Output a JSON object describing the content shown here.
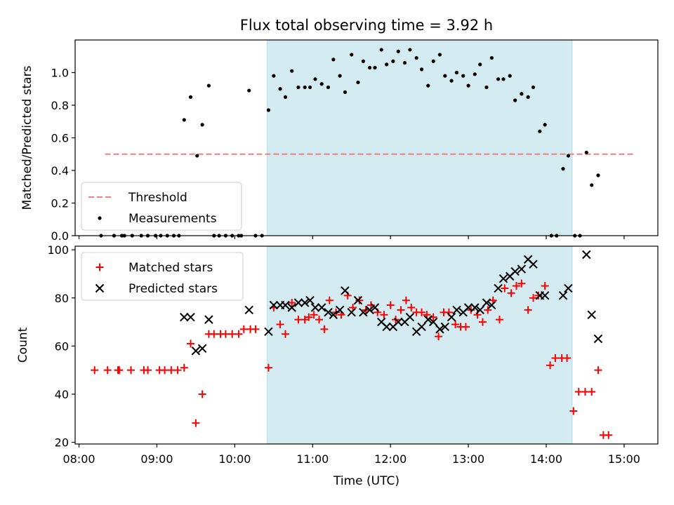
{
  "title": "Flux total observing time = 3.92 h",
  "chart_data": [
    {
      "type": "scatter",
      "ylabel": "Matched/Predicted stars",
      "ylim": [
        0,
        1.2
      ],
      "yticks": [
        0.0,
        0.2,
        0.4,
        0.6,
        0.8,
        1.0
      ],
      "ytick_labels": [
        "0.0",
        "0.2",
        "0.4",
        "0.6",
        "0.8",
        "1.0"
      ],
      "shaded_span": [
        "10:25",
        "14:20"
      ],
      "shade_color": "#d4ebf1",
      "threshold": {
        "name": "Threshold",
        "value": 0.5,
        "x_range": [
          "08:20",
          "15:08"
        ],
        "color": "#f08080"
      },
      "legend_position": "lower left",
      "series": [
        {
          "name": "Measurements",
          "color": "#000000",
          "marker": "dot",
          "points": [
            [
              "08:17",
              0
            ],
            [
              "08:27",
              0
            ],
            [
              "08:33",
              0
            ],
            [
              "08:35",
              0
            ],
            [
              "08:41",
              0
            ],
            [
              "08:48",
              0
            ],
            [
              "08:53",
              0
            ],
            [
              "08:59",
              0
            ],
            [
              "09:03",
              0
            ],
            [
              "09:08",
              0
            ],
            [
              "09:13",
              0
            ],
            [
              "09:17",
              0
            ],
            [
              "09:21",
              0.71
            ],
            [
              "09:26",
              0.85
            ],
            [
              "09:31",
              0.49
            ],
            [
              "09:35",
              0.68
            ],
            [
              "09:40",
              0.92
            ],
            [
              "09:44",
              0
            ],
            [
              "09:48",
              0
            ],
            [
              "09:53",
              0
            ],
            [
              "09:58",
              0
            ],
            [
              "10:03",
              0
            ],
            [
              "10:05",
              0
            ],
            [
              "10:11",
              0.89
            ],
            [
              "10:16",
              0
            ],
            [
              "10:21",
              0
            ],
            [
              "10:26",
              0.77
            ],
            [
              "10:30",
              0.98
            ],
            [
              "10:35",
              0.9
            ],
            [
              "10:39",
              0.85
            ],
            [
              "10:44",
              1.01
            ],
            [
              "10:49",
              0.91
            ],
            [
              "10:54",
              0.91
            ],
            [
              "10:58",
              0.91
            ],
            [
              "11:02",
              0.96
            ],
            [
              "11:07",
              0.93
            ],
            [
              "11:12",
              0.91
            ],
            [
              "11:16",
              1.08
            ],
            [
              "11:21",
              0.98
            ],
            [
              "11:25",
              0.88
            ],
            [
              "11:30",
              1.11
            ],
            [
              "11:35",
              0.94
            ],
            [
              "11:39",
              1.07
            ],
            [
              "11:44",
              1.03
            ],
            [
              "11:48",
              1.03
            ],
            [
              "11:53",
              1.14
            ],
            [
              "11:57",
              1.05
            ],
            [
              "12:02",
              1.07
            ],
            [
              "12:06",
              1.13
            ],
            [
              "12:11",
              1.06
            ],
            [
              "12:15",
              1.14
            ],
            [
              "12:20",
              1.09
            ],
            [
              "12:24",
              1.02
            ],
            [
              "12:29",
              0.92
            ],
            [
              "12:33",
              1.07
            ],
            [
              "12:38",
              1.11
            ],
            [
              "12:42",
              0.98
            ],
            [
              "12:47",
              0.95
            ],
            [
              "12:51",
              1.0
            ],
            [
              "12:56",
              0.98
            ],
            [
              "13:00",
              0.92
            ],
            [
              "13:05",
              0.99
            ],
            [
              "13:09",
              1.05
            ],
            [
              "13:14",
              0.91
            ],
            [
              "13:18",
              1.09
            ],
            [
              "13:23",
              0.96
            ],
            [
              "13:27",
              0.96
            ],
            [
              "13:32",
              0.98
            ],
            [
              "13:36",
              0.83
            ],
            [
              "13:41",
              0.87
            ],
            [
              "13:46",
              0.85
            ],
            [
              "13:50",
              0.91
            ],
            [
              "13:55",
              0.64
            ],
            [
              "13:59",
              0.68
            ],
            [
              "14:04",
              0
            ],
            [
              "14:08",
              0
            ],
            [
              "14:13",
              0.41
            ],
            [
              "14:17",
              0.49
            ],
            [
              "14:22",
              0
            ],
            [
              "14:26",
              0
            ],
            [
              "14:31",
              0.51
            ],
            [
              "14:35",
              0.31
            ],
            [
              "14:40",
              0.37
            ]
          ]
        }
      ]
    },
    {
      "type": "scatter",
      "xlabel": "Time (UTC)",
      "ylabel": "Count",
      "ylim": [
        19.3,
        101.5
      ],
      "yticks": [
        20,
        40,
        60,
        80,
        100
      ],
      "ytick_labels": [
        "20",
        "40",
        "60",
        "80",
        "100"
      ],
      "xlim": [
        "07:57",
        "15:26"
      ],
      "xticks": [
        "08:00",
        "09:00",
        "10:00",
        "11:00",
        "12:00",
        "13:00",
        "14:00",
        "15:00"
      ],
      "xtick_labels": [
        "08:00",
        "09:00",
        "10:00",
        "11:00",
        "12:00",
        "13:00",
        "14:00",
        "15:00"
      ],
      "legend_position": "upper left",
      "series": [
        {
          "name": "Matched stars",
          "color": "#ff0000",
          "marker": "plus",
          "points": [
            [
              "08:12",
              50
            ],
            [
              "08:22",
              50
            ],
            [
              "08:30",
              50
            ],
            [
              "08:31",
              50
            ],
            [
              "08:40",
              50
            ],
            [
              "08:50",
              50
            ],
            [
              "08:53",
              50
            ],
            [
              "09:02",
              50
            ],
            [
              "09:06",
              50
            ],
            [
              "09:11",
              50
            ],
            [
              "09:16",
              50
            ],
            [
              "09:21",
              51
            ],
            [
              "09:26",
              61
            ],
            [
              "09:30",
              28
            ],
            [
              "09:35",
              40
            ],
            [
              "09:40",
              65
            ],
            [
              "09:44",
              65
            ],
            [
              "09:49",
              65
            ],
            [
              "09:53",
              65
            ],
            [
              "09:58",
              65
            ],
            [
              "10:03",
              65
            ],
            [
              "10:07",
              67
            ],
            [
              "10:12",
              67
            ],
            [
              "10:16",
              67
            ],
            [
              "10:26",
              51
            ],
            [
              "10:30",
              76
            ],
            [
              "10:35",
              69
            ],
            [
              "10:39",
              65
            ],
            [
              "10:44",
              78
            ],
            [
              "10:49",
              71
            ],
            [
              "10:54",
              71
            ],
            [
              "10:57",
              72
            ],
            [
              "11:01",
              73
            ],
            [
              "11:05",
              71
            ],
            [
              "11:09",
              67
            ],
            [
              "11:13",
              79
            ],
            [
              "11:18",
              74
            ],
            [
              "11:22",
              73
            ],
            [
              "11:27",
              81
            ],
            [
              "11:31",
              76
            ],
            [
              "11:36",
              79
            ],
            [
              "11:41",
              75
            ],
            [
              "11:45",
              77
            ],
            [
              "11:50",
              74
            ],
            [
              "11:55",
              73
            ],
            [
              "12:00",
              77
            ],
            [
              "12:04",
              71
            ],
            [
              "12:08",
              75
            ],
            [
              "12:12",
              79
            ],
            [
              "12:16",
              76
            ],
            [
              "12:20",
              74
            ],
            [
              "12:24",
              74
            ],
            [
              "12:28",
              73
            ],
            [
              "12:33",
              72
            ],
            [
              "12:37",
              64
            ],
            [
              "12:41",
              74
            ],
            [
              "12:45",
              74
            ],
            [
              "12:50",
              69
            ],
            [
              "12:54",
              68
            ],
            [
              "12:58",
              68
            ],
            [
              "13:02",
              75
            ],
            [
              "13:07",
              73
            ],
            [
              "13:11",
              70
            ],
            [
              "13:15",
              75
            ],
            [
              "13:19",
              79
            ],
            [
              "13:24",
              71
            ],
            [
              "13:28",
              84
            ],
            [
              "13:33",
              82
            ],
            [
              "13:37",
              85
            ],
            [
              "13:41",
              86
            ],
            [
              "13:46",
              75
            ],
            [
              "13:50",
              80
            ],
            [
              "13:54",
              81
            ],
            [
              "13:59",
              85
            ],
            [
              "14:03",
              52
            ],
            [
              "14:07",
              55
            ],
            [
              "14:12",
              55
            ],
            [
              "14:16",
              55
            ],
            [
              "14:21",
              33
            ],
            [
              "14:25",
              41
            ],
            [
              "14:30",
              41
            ],
            [
              "14:35",
              41
            ],
            [
              "14:40",
              50
            ],
            [
              "14:44",
              23
            ],
            [
              "14:48",
              23
            ]
          ]
        },
        {
          "name": "Predicted stars",
          "color": "#000000",
          "marker": "x",
          "points": [
            [
              "09:21",
              72
            ],
            [
              "09:26",
              72
            ],
            [
              "09:30",
              58
            ],
            [
              "09:35",
              59
            ],
            [
              "09:40",
              71
            ],
            [
              "10:11",
              75
            ],
            [
              "10:26",
              66
            ],
            [
              "10:30",
              77
            ],
            [
              "10:35",
              77
            ],
            [
              "10:39",
              77
            ],
            [
              "10:44",
              76
            ],
            [
              "10:49",
              78
            ],
            [
              "10:54",
              78
            ],
            [
              "10:58",
              79
            ],
            [
              "11:02",
              76
            ],
            [
              "11:07",
              76
            ],
            [
              "11:12",
              74
            ],
            [
              "11:16",
              73
            ],
            [
              "11:21",
              75
            ],
            [
              "11:25",
              83
            ],
            [
              "11:30",
              74
            ],
            [
              "11:35",
              79
            ],
            [
              "11:39",
              74
            ],
            [
              "11:44",
              75
            ],
            [
              "11:48",
              76
            ],
            [
              "11:53",
              70
            ],
            [
              "11:57",
              68
            ],
            [
              "12:02",
              68
            ],
            [
              "12:06",
              70
            ],
            [
              "12:11",
              70
            ],
            [
              "12:15",
              72
            ],
            [
              "12:20",
              66
            ],
            [
              "12:24",
              68
            ],
            [
              "12:29",
              71
            ],
            [
              "12:33",
              70
            ],
            [
              "12:38",
              67
            ],
            [
              "12:42",
              68
            ],
            [
              "12:47",
              72
            ],
            [
              "12:51",
              75
            ],
            [
              "12:56",
              74
            ],
            [
              "13:00",
              76
            ],
            [
              "13:05",
              76
            ],
            [
              "13:09",
              75
            ],
            [
              "13:14",
              78
            ],
            [
              "13:18",
              77
            ],
            [
              "13:23",
              84
            ],
            [
              "13:27",
              88
            ],
            [
              "13:32",
              89
            ],
            [
              "13:36",
              91
            ],
            [
              "13:41",
              92
            ],
            [
              "13:46",
              96
            ],
            [
              "13:50",
              94
            ],
            [
              "13:55",
              81
            ],
            [
              "13:59",
              81
            ],
            [
              "14:13",
              81
            ],
            [
              "14:17",
              84
            ],
            [
              "14:31",
              98
            ],
            [
              "14:35",
              73
            ],
            [
              "14:40",
              63
            ]
          ]
        }
      ]
    }
  ]
}
